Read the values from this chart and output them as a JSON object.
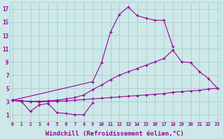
{
  "background_color": "#cde8e8",
  "grid_color": "#aacccc",
  "line_color": "#990099",
  "xlabel": "Windchill (Refroidissement éolien,°C)",
  "xlabel_fontsize": 6.5,
  "ylabel_ticks": [
    1,
    3,
    5,
    7,
    9,
    11,
    13,
    15,
    17
  ],
  "xlabel_ticks": [
    0,
    1,
    2,
    3,
    4,
    5,
    6,
    7,
    8,
    9,
    10,
    11,
    12,
    13,
    14,
    15,
    16,
    17,
    18,
    19,
    20,
    21,
    22,
    23
  ],
  "xlim": [
    -0.3,
    23.3
  ],
  "ylim": [
    0,
    18
  ],
  "series": [
    {
      "x": [
        0,
        1,
        2,
        3,
        4,
        5,
        6,
        7,
        8,
        9
      ],
      "y": [
        3.2,
        3.0,
        1.5,
        2.5,
        2.7,
        1.3,
        1.2,
        1.0,
        1.0,
        2.8
      ]
    },
    {
      "x": [
        0,
        9,
        10,
        11,
        12,
        13,
        14,
        15,
        16,
        17,
        18
      ],
      "y": [
        3.2,
        6.0,
        8.9,
        13.5,
        16.2,
        17.3,
        16.0,
        15.6,
        15.3,
        15.3,
        11.3
      ]
    },
    {
      "x": [
        0,
        1,
        2,
        3,
        4,
        5,
        6,
        7,
        8,
        9,
        10,
        11,
        12,
        13,
        14,
        15,
        16,
        17,
        18,
        19,
        20,
        21,
        22,
        23
      ],
      "y": [
        3.2,
        3.1,
        3.0,
        2.95,
        3.0,
        3.05,
        3.1,
        3.2,
        3.3,
        3.4,
        3.5,
        3.6,
        3.7,
        3.8,
        3.9,
        4.0,
        4.1,
        4.2,
        4.4,
        4.5,
        4.6,
        4.7,
        4.9,
        5.0
      ]
    },
    {
      "x": [
        0,
        1,
        2,
        3,
        4,
        5,
        6,
        7,
        8,
        9,
        10,
        11,
        12,
        13,
        14,
        15,
        16,
        17,
        18,
        19,
        20,
        21,
        22,
        23
      ],
      "y": [
        3.2,
        3.1,
        3.0,
        3.05,
        3.1,
        3.2,
        3.4,
        3.6,
        4.0,
        4.8,
        5.5,
        6.3,
        7.0,
        7.5,
        8.0,
        8.5,
        9.0,
        9.5,
        10.8,
        9.0,
        8.9,
        7.5,
        6.5,
        5.0
      ]
    }
  ]
}
